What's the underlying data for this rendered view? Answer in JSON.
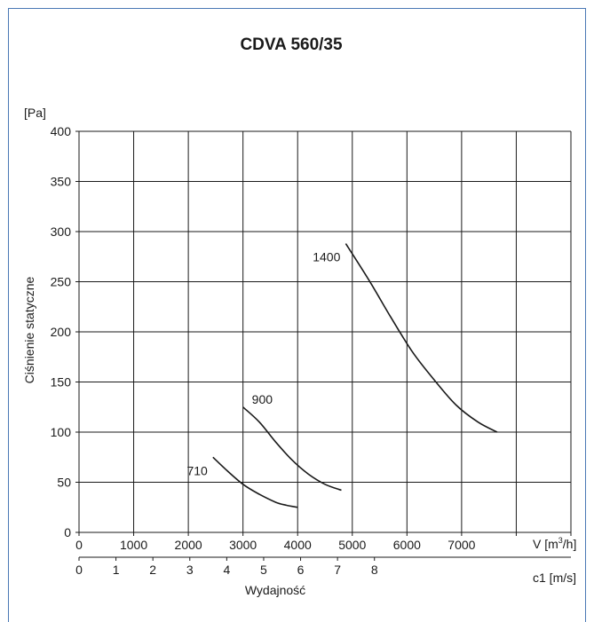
{
  "chart_data": {
    "type": "line",
    "title": "CDVA 560/35",
    "ylabel": "Ciśnienie statyczne",
    "yunit": "[Pa]",
    "xlabel": "Wydajność",
    "x_unit_label": "V [m³/h]",
    "x2_unit_label": "c1 [m/s]",
    "xlim": [
      0,
      9000
    ],
    "ylim": [
      0,
      400
    ],
    "x_ticks": [
      "0",
      "1000",
      "2000",
      "3000",
      "4000",
      "5000",
      "6000",
      "7000"
    ],
    "y_ticks": [
      "0",
      "50",
      "100",
      "150",
      "200",
      "250",
      "300",
      "350",
      "400"
    ],
    "x2_ticks": [
      "0",
      "1",
      "2",
      "3",
      "4",
      "5",
      "6",
      "7",
      "8"
    ],
    "x2_ratio": 0.00148,
    "grid": true,
    "series": [
      {
        "name": "710",
        "x": [
          2450,
          2700,
          3000,
          3300,
          3600,
          3800,
          4000
        ],
        "y": [
          75,
          62,
          48,
          38,
          30,
          27,
          25
        ]
      },
      {
        "name": "900",
        "x": [
          3000,
          3300,
          3600,
          3900,
          4200,
          4500,
          4800
        ],
        "y": [
          125,
          110,
          90,
          72,
          58,
          48,
          42
        ]
      },
      {
        "name": "1400",
        "x": [
          4880,
          5300,
          5700,
          6100,
          6500,
          6900,
          7300,
          7650
        ],
        "y": [
          288,
          252,
          215,
          180,
          152,
          127,
          110,
          100
        ]
      }
    ]
  }
}
